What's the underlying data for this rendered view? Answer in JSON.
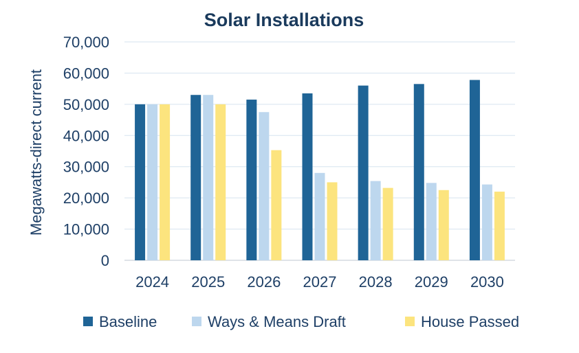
{
  "chart_data": {
    "type": "bar",
    "title": "Solar Installations",
    "xlabel": "",
    "ylabel": "Megawatts-direct current",
    "categories": [
      "2024",
      "2025",
      "2026",
      "2027",
      "2028",
      "2029",
      "2030"
    ],
    "series": [
      {
        "name": "Baseline",
        "color": "#1F6496",
        "values": [
          50000,
          53000,
          51500,
          53500,
          56000,
          56500,
          57800
        ]
      },
      {
        "name": "Ways & Means Draft",
        "color": "#BDD7EE",
        "values": [
          50000,
          53000,
          47500,
          28000,
          25400,
          24800,
          24300
        ]
      },
      {
        "name": "House Passed",
        "color": "#FCE47E",
        "values": [
          50000,
          50000,
          35300,
          25000,
          23200,
          22500,
          22000
        ]
      }
    ],
    "ylim": [
      0,
      70000
    ],
    "yticks": [
      0,
      10000,
      20000,
      30000,
      40000,
      50000,
      60000,
      70000
    ],
    "ytick_labels": [
      "0",
      "10,000",
      "20,000",
      "30,000",
      "40,000",
      "50,000",
      "60,000",
      "70,000"
    ],
    "grid": true,
    "legend_position": "bottom",
    "title_color": "#1A3A5C",
    "text_color": "#1E3F66"
  }
}
